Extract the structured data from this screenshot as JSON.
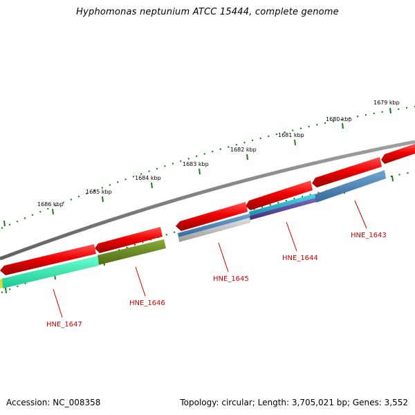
{
  "title": "Hyphomonas neptunium ATCC 15444, complete genome",
  "footer": {
    "accession": "Accession: NC_008358",
    "summary": "Topology: circular; Length: 3,705,021 bp; Genes: 3,552"
  },
  "ruler_labels": [
    "1679 kbp",
    "1680 kbp",
    "1681 kbp",
    "1682 kbp",
    "1683 kbp",
    "1684 kbp",
    "1685 kbp",
    "1686 kbp"
  ],
  "genes": [
    {
      "id": "HNE_1643",
      "color": "#cc0000"
    },
    {
      "id": "HNE_1644",
      "color": "#cc0000"
    },
    {
      "id": "HNE_1645",
      "color": "#cc0000"
    },
    {
      "id": "HNE_1646",
      "color": "#cc0000"
    },
    {
      "id": "HNE_1647",
      "color": "#cc0000"
    }
  ],
  "colors": {
    "backbone": "#808080",
    "gene_arrow": "#ee0000",
    "ruler_ticks": "#1a7a1a",
    "teal_feature": "#33e8b0",
    "olive_feature": "#6e8e24",
    "steelblue_feature": "#4a82b4",
    "cyan_feature": "#22b0c8",
    "purple_feature": "#5a4a9a",
    "gray_feature": "#bbbbbb"
  }
}
